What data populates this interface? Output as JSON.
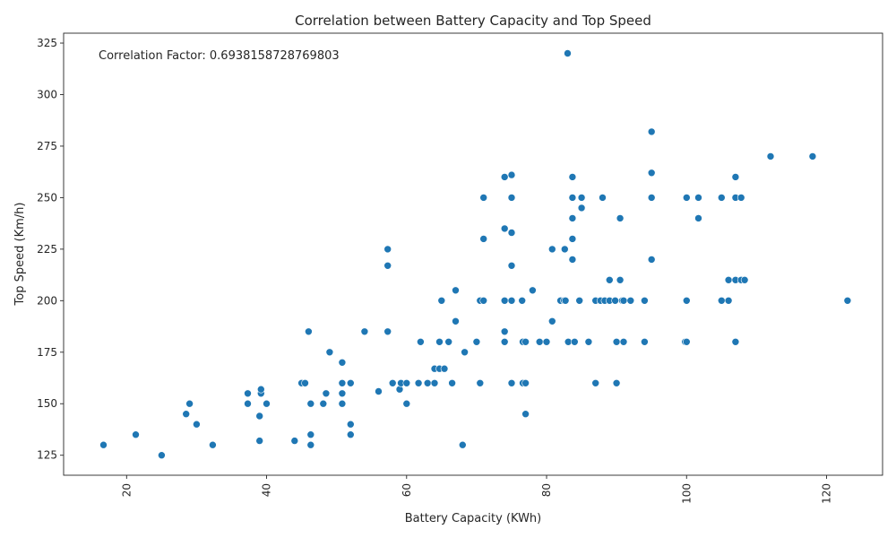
{
  "chart_data": {
    "type": "scatter",
    "title": "Correlation between Battery Capacity and Top Speed",
    "xlabel": "Battery Capacity (KWh)",
    "ylabel": "Top Speed (Km/h)",
    "annotation": "Correlation Factor: 0.6938158728769803",
    "xlim": [
      11,
      128
    ],
    "ylim": [
      115.3,
      329.8
    ],
    "x_ticks": [
      20,
      40,
      60,
      80,
      100,
      120
    ],
    "y_ticks": [
      125,
      150,
      175,
      200,
      225,
      250,
      275,
      300,
      325
    ],
    "x_tick_rotation": 90,
    "grid": false,
    "color": "#1f77b4",
    "points": [
      [
        16.7,
        130
      ],
      [
        21.3,
        135
      ],
      [
        25.0,
        125
      ],
      [
        28.5,
        145
      ],
      [
        29.0,
        150
      ],
      [
        30.0,
        140
      ],
      [
        32.3,
        130
      ],
      [
        37.3,
        150
      ],
      [
        37.3,
        155
      ],
      [
        39.2,
        155
      ],
      [
        39.2,
        157
      ],
      [
        39.0,
        132
      ],
      [
        39.0,
        144
      ],
      [
        40.0,
        150
      ],
      [
        44.0,
        132
      ],
      [
        45.0,
        160
      ],
      [
        45.5,
        160
      ],
      [
        46.0,
        185
      ],
      [
        46.3,
        150
      ],
      [
        46.3,
        135
      ],
      [
        46.3,
        130
      ],
      [
        48.1,
        150
      ],
      [
        48.5,
        155
      ],
      [
        49.0,
        175
      ],
      [
        50.8,
        160
      ],
      [
        50.8,
        155
      ],
      [
        50.8,
        150
      ],
      [
        50.8,
        170
      ],
      [
        52.0,
        160
      ],
      [
        52.0,
        140
      ],
      [
        52.0,
        135
      ],
      [
        54.0,
        185
      ],
      [
        56.0,
        156
      ],
      [
        57.3,
        225
      ],
      [
        57.3,
        217
      ],
      [
        57.3,
        185
      ],
      [
        58.0,
        160
      ],
      [
        59.0,
        157
      ],
      [
        59.2,
        160
      ],
      [
        60.0,
        160
      ],
      [
        60.0,
        150
      ],
      [
        61.7,
        160
      ],
      [
        62.0,
        180
      ],
      [
        63.0,
        160
      ],
      [
        64.0,
        167
      ],
      [
        64.0,
        160
      ],
      [
        64.7,
        180
      ],
      [
        64.7,
        167
      ],
      [
        65.0,
        200
      ],
      [
        65.4,
        167
      ],
      [
        66.0,
        180
      ],
      [
        66.5,
        160
      ],
      [
        67.0,
        205
      ],
      [
        67.0,
        190
      ],
      [
        68.0,
        130
      ],
      [
        68.3,
        175
      ],
      [
        70.0,
        180
      ],
      [
        70.5,
        160
      ],
      [
        70.5,
        200
      ],
      [
        71.0,
        200
      ],
      [
        71.0,
        250
      ],
      [
        71.0,
        230
      ],
      [
        74.0,
        260
      ],
      [
        74.0,
        235
      ],
      [
        74.0,
        185
      ],
      [
        74.0,
        200
      ],
      [
        74.0,
        180
      ],
      [
        75.0,
        261
      ],
      [
        75.0,
        250
      ],
      [
        75.0,
        233
      ],
      [
        75.0,
        217
      ],
      [
        75.0,
        200
      ],
      [
        75.0,
        160
      ],
      [
        76.5,
        200
      ],
      [
        76.6,
        180
      ],
      [
        76.6,
        160
      ],
      [
        77.0,
        180
      ],
      [
        77.0,
        160
      ],
      [
        77.0,
        145
      ],
      [
        78.0,
        205
      ],
      [
        79.0,
        180
      ],
      [
        80.0,
        180
      ],
      [
        80.8,
        225
      ],
      [
        80.8,
        190
      ],
      [
        82.0,
        200
      ],
      [
        82.5,
        200
      ],
      [
        82.6,
        225
      ],
      [
        82.7,
        200
      ],
      [
        83.0,
        320
      ],
      [
        83.1,
        180
      ],
      [
        83.7,
        260
      ],
      [
        83.7,
        250
      ],
      [
        83.7,
        240
      ],
      [
        83.7,
        230
      ],
      [
        83.7,
        220
      ],
      [
        84.0,
        180
      ],
      [
        84.7,
        200
      ],
      [
        85.0,
        250
      ],
      [
        85.0,
        245
      ],
      [
        86.0,
        180
      ],
      [
        87.0,
        200
      ],
      [
        87.0,
        160
      ],
      [
        87.7,
        200
      ],
      [
        88.0,
        250
      ],
      [
        88.3,
        200
      ],
      [
        89.0,
        210
      ],
      [
        89.0,
        200
      ],
      [
        89.8,
        200
      ],
      [
        90.0,
        180
      ],
      [
        90.0,
        160
      ],
      [
        90.5,
        240
      ],
      [
        90.5,
        210
      ],
      [
        90.8,
        200
      ],
      [
        91.0,
        200
      ],
      [
        91.0,
        180
      ],
      [
        92.0,
        200
      ],
      [
        94.0,
        200
      ],
      [
        94.0,
        180
      ],
      [
        95.0,
        282
      ],
      [
        95.0,
        262
      ],
      [
        95.0,
        250
      ],
      [
        95.0,
        220
      ],
      [
        99.8,
        180
      ],
      [
        100.0,
        250
      ],
      [
        100.0,
        200
      ],
      [
        100.0,
        180
      ],
      [
        101.7,
        250
      ],
      [
        101.7,
        240
      ],
      [
        105.0,
        250
      ],
      [
        105.0,
        200
      ],
      [
        106.0,
        210
      ],
      [
        106.0,
        200
      ],
      [
        107.0,
        260
      ],
      [
        107.0,
        250
      ],
      [
        107.0,
        210
      ],
      [
        107.0,
        180
      ],
      [
        107.8,
        250
      ],
      [
        107.8,
        210
      ],
      [
        108.3,
        210
      ],
      [
        112.0,
        270
      ],
      [
        118.0,
        270
      ],
      [
        123.0,
        200
      ]
    ]
  }
}
